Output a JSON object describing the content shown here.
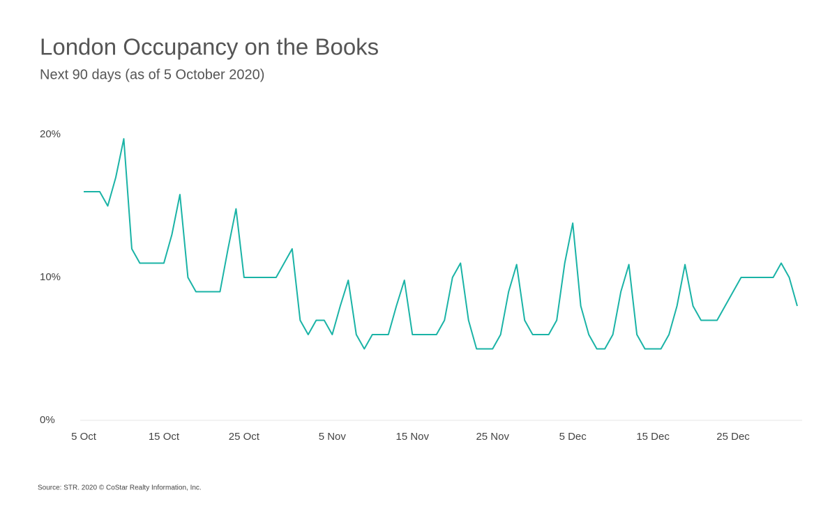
{
  "chart_data": {
    "type": "line",
    "title": "London Occupancy on the Books",
    "subtitle": "Next 90 days (as of 5 October 2020)",
    "source": "Source: STR. 2020 © CoStar Realty Information, Inc.",
    "categories": [
      "5 Oct",
      null,
      null,
      null,
      null,
      null,
      null,
      null,
      null,
      null,
      "15 Oct",
      null,
      null,
      null,
      null,
      null,
      null,
      null,
      null,
      null,
      "25 Oct",
      null,
      null,
      null,
      null,
      null,
      null,
      null,
      null,
      null,
      null,
      "5 Nov",
      null,
      null,
      null,
      null,
      null,
      null,
      null,
      null,
      null,
      "15 Nov",
      null,
      null,
      null,
      null,
      null,
      null,
      null,
      null,
      null,
      "25 Nov",
      null,
      null,
      null,
      null,
      null,
      null,
      null,
      null,
      null,
      "5 Dec",
      null,
      null,
      null,
      null,
      null,
      null,
      null,
      null,
      null,
      "15 Dec",
      null,
      null,
      null,
      null,
      null,
      null,
      null,
      null,
      null,
      "25 Dec",
      null,
      null,
      null,
      null,
      null,
      null,
      null,
      null
    ],
    "series": [
      {
        "name": "Occupancy",
        "color": "#1ab3a6",
        "values": [
          16,
          16,
          16,
          15,
          17,
          19.7,
          12,
          11,
          11,
          11,
          11,
          13,
          15.8,
          10,
          9,
          9,
          9,
          9,
          12,
          14.8,
          10,
          10,
          10,
          10,
          10,
          11,
          12,
          7,
          6,
          7,
          7,
          6,
          8,
          9.8,
          6,
          5,
          6,
          6,
          6,
          8,
          9.8,
          6,
          6,
          6,
          6,
          7,
          10,
          11,
          7,
          5,
          5,
          5,
          6,
          9,
          10.9,
          7,
          6,
          6,
          6,
          7,
          11,
          13.8,
          8,
          6,
          5,
          5,
          6,
          9,
          10.9,
          6,
          5,
          5,
          5,
          6,
          8,
          10.9,
          8,
          7,
          7,
          7,
          8,
          9,
          10,
          10,
          10,
          10,
          10,
          11,
          10,
          8
        ]
      }
    ],
    "ylim": [
      0,
      20
    ],
    "yticks": [
      {
        "value": 0,
        "label": "0%"
      },
      {
        "value": 10,
        "label": "10%"
      },
      {
        "value": 20,
        "label": "20%"
      }
    ],
    "grid": false
  }
}
